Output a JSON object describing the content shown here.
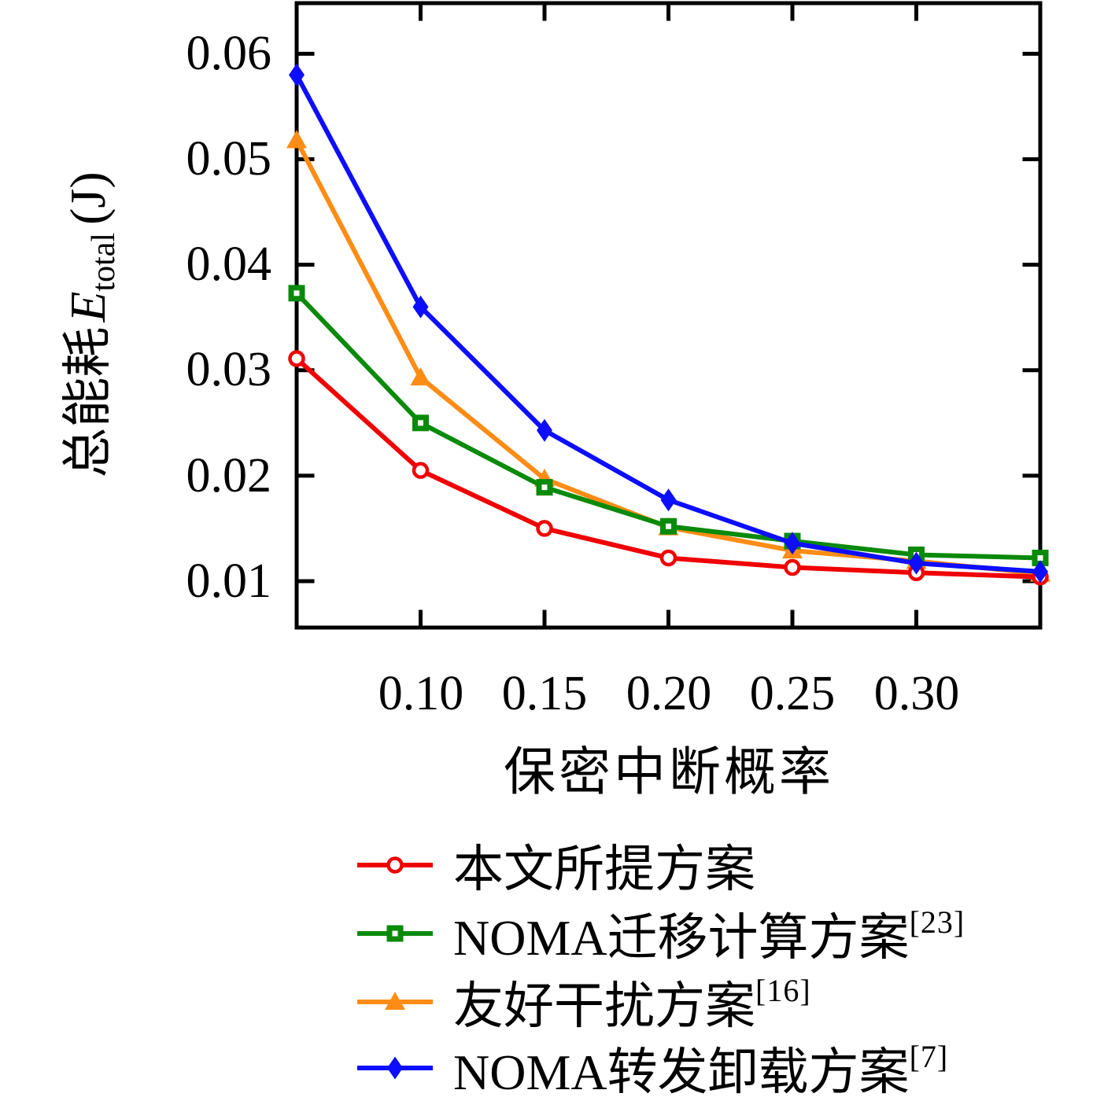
{
  "chart_data": {
    "type": "line",
    "x": [
      0.05,
      0.1,
      0.15,
      0.2,
      0.25,
      0.3,
      0.35
    ],
    "series": [
      {
        "name": "本文所提方案",
        "ref": "",
        "color": "#f00000",
        "marker": "circle-open",
        "values": [
          0.0311,
          0.0205,
          0.015,
          0.0122,
          0.0113,
          0.0108,
          0.0104
        ]
      },
      {
        "name": "NOMA迁移计算方案",
        "ref": "[23]",
        "color": "#0a8a0a",
        "marker": "square-open",
        "values": [
          0.0373,
          0.025,
          0.0189,
          0.0152,
          0.0138,
          0.0125,
          0.0122
        ]
      },
      {
        "name": "友好干扰方案",
        "ref": "[16]",
        "color": "#ff8c14",
        "marker": "triangle-filled",
        "values": [
          0.0518,
          0.0293,
          0.0197,
          0.0151,
          0.0129,
          0.0119,
          0.0107
        ]
      },
      {
        "name": "NOMA转发卸载方案",
        "ref": "[7]",
        "color": "#0d0dff",
        "marker": "diamond-filled",
        "values": [
          0.058,
          0.036,
          0.0243,
          0.0177,
          0.0136,
          0.0117,
          0.0109
        ]
      }
    ],
    "draw_order": [
      2,
      1,
      0,
      3
    ],
    "title": "",
    "xlabel": "保密中断概率",
    "ylabel_prefix": "总能耗",
    "ylabel_var": "E",
    "ylabel_sub": "total",
    "ylabel_unit": "(J)",
    "xticks": {
      "values": [
        0.1,
        0.15,
        0.2,
        0.25,
        0.3
      ],
      "labels": [
        "0.10",
        "0.15",
        "0.20",
        "0.25",
        "0.30"
      ]
    },
    "yticks": {
      "values": [
        0.06,
        0.05,
        0.04,
        0.03,
        0.02,
        0.01
      ],
      "labels": [
        "0.06",
        "0.05",
        "0.04",
        "0.03",
        "0.02",
        "0.01"
      ]
    },
    "xlim": [
      0.05,
      0.35
    ],
    "ylim": [
      0.0056,
      0.0648
    ],
    "grid": false,
    "legend_position": "below-left",
    "axis_color": "#000000",
    "background": "#ffffff"
  }
}
